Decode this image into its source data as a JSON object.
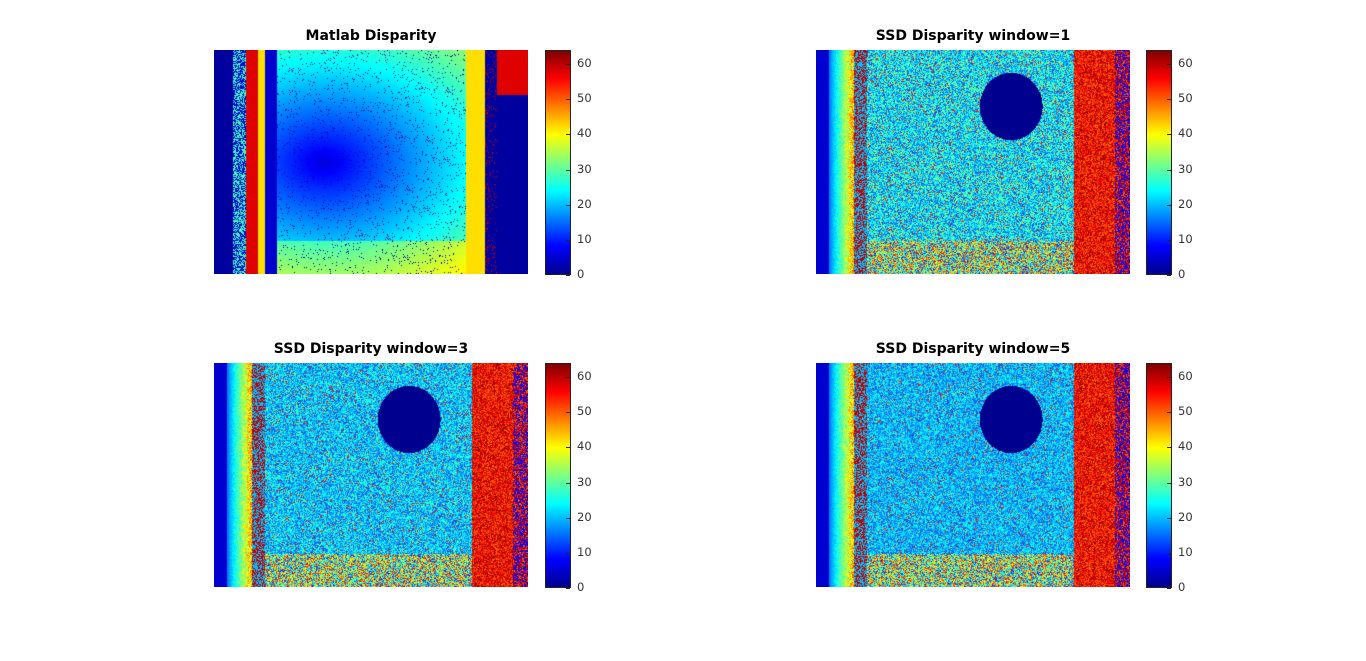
{
  "figure": {
    "panels": [
      {
        "title": "Matlab Disparity"
      },
      {
        "title": "SSD Disparity window=1"
      },
      {
        "title": "SSD Disparity window=3"
      },
      {
        "title": "SSD Disparity window=5"
      }
    ],
    "colormap": "jet"
  },
  "chart_data": [
    {
      "type": "heatmap",
      "title": "Matlab Disparity",
      "colorbar": {
        "ticks": [
          "0",
          "10",
          "20",
          "30",
          "40",
          "50",
          "60"
        ],
        "clim": [
          0,
          64
        ]
      }
    },
    {
      "type": "heatmap",
      "title": "SSD Disparity window=1",
      "colorbar": {
        "ticks": [
          "0",
          "10",
          "20",
          "30",
          "40",
          "50",
          "60"
        ],
        "clim": [
          0,
          64
        ]
      }
    },
    {
      "type": "heatmap",
      "title": "SSD Disparity window=3",
      "colorbar": {
        "ticks": [
          "0",
          "10",
          "20",
          "30",
          "40",
          "50",
          "60"
        ],
        "clim": [
          0,
          64
        ]
      }
    },
    {
      "type": "heatmap",
      "title": "SSD Disparity window=5",
      "colorbar": {
        "ticks": [
          "0",
          "10",
          "20",
          "30",
          "40",
          "50",
          "60"
        ],
        "clim": [
          0,
          64
        ]
      }
    }
  ]
}
